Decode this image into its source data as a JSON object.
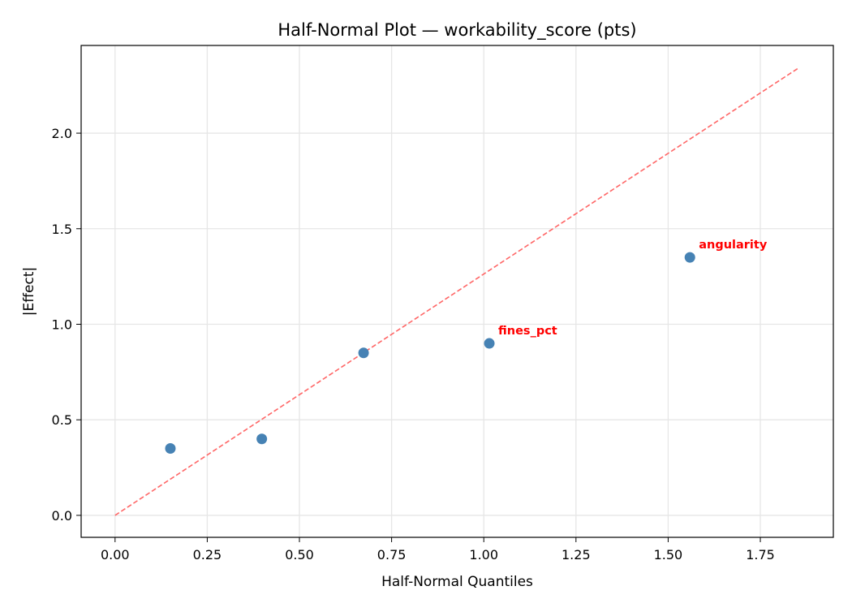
{
  "chart_data": {
    "type": "scatter",
    "title": "Half-Normal Plot — workability_score (pts)",
    "xlabel": "Half-Normal Quantiles",
    "ylabel": "|Effect|",
    "xlim": [
      -0.092,
      1.948
    ],
    "ylim": [
      -0.115,
      2.459
    ],
    "xticks": [
      0.0,
      0.25,
      0.5,
      0.75,
      1.0,
      1.25,
      1.5,
      1.75
    ],
    "xtick_labels": [
      "0.00",
      "0.25",
      "0.50",
      "0.75",
      "1.00",
      "1.25",
      "1.50",
      "1.75"
    ],
    "yticks": [
      0.0,
      0.5,
      1.0,
      1.5,
      2.0
    ],
    "ytick_labels": [
      "0.0",
      "0.5",
      "1.0",
      "1.5",
      "2.0"
    ],
    "grid": true,
    "points": [
      {
        "x": 0.15,
        "y": 0.35,
        "label": ""
      },
      {
        "x": 0.398,
        "y": 0.4,
        "label": ""
      },
      {
        "x": 0.674,
        "y": 0.85,
        "label": ""
      },
      {
        "x": 1.015,
        "y": 0.9,
        "label": "fines_pct"
      },
      {
        "x": 1.559,
        "y": 1.35,
        "label": "angularity"
      }
    ],
    "reference_line": {
      "x": [
        0.0,
        1.856
      ],
      "y": [
        0.0,
        2.344
      ],
      "style": "dashed"
    },
    "colors": {
      "points": "#4682b4",
      "reference_line": "#ff6666",
      "annotations": "#ff0000",
      "grid": "#e6e6e6"
    }
  }
}
